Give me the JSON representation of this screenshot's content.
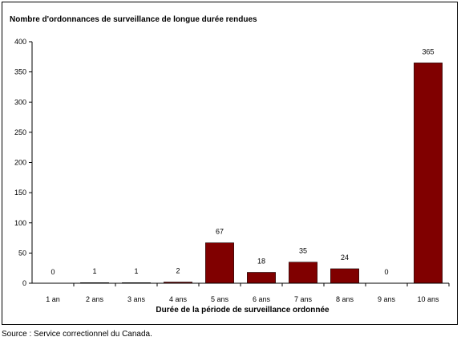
{
  "title": "Nombre d'ordonnances de surveillance de longue durée rendues",
  "source": "Source : Service correctionnel du Canada.",
  "colors": {
    "bar": "#800000",
    "axis": "#000000",
    "background": "#ffffff"
  },
  "chart_data": {
    "type": "bar",
    "title": "Nombre d'ordonnances de surveillance de longue durée rendues",
    "xlabel": "Durée de la période de surveillance ordonnée",
    "ylabel": "",
    "categories": [
      "1 an",
      "2 ans",
      "3 ans",
      "4 ans",
      "5 ans",
      "6 ans",
      "7 ans",
      "8 ans",
      "9 ans",
      "10 ans"
    ],
    "values": [
      0,
      1,
      1,
      2,
      67,
      18,
      35,
      24,
      0,
      365
    ],
    "data_labels": [
      "0",
      "1",
      "1",
      "2",
      "67",
      "18",
      "35",
      "24",
      "0",
      "365"
    ],
    "ylim": [
      0,
      400
    ],
    "yticks": [
      0,
      50,
      100,
      150,
      200,
      250,
      300,
      350,
      400
    ],
    "grid": false,
    "legend": "none"
  }
}
